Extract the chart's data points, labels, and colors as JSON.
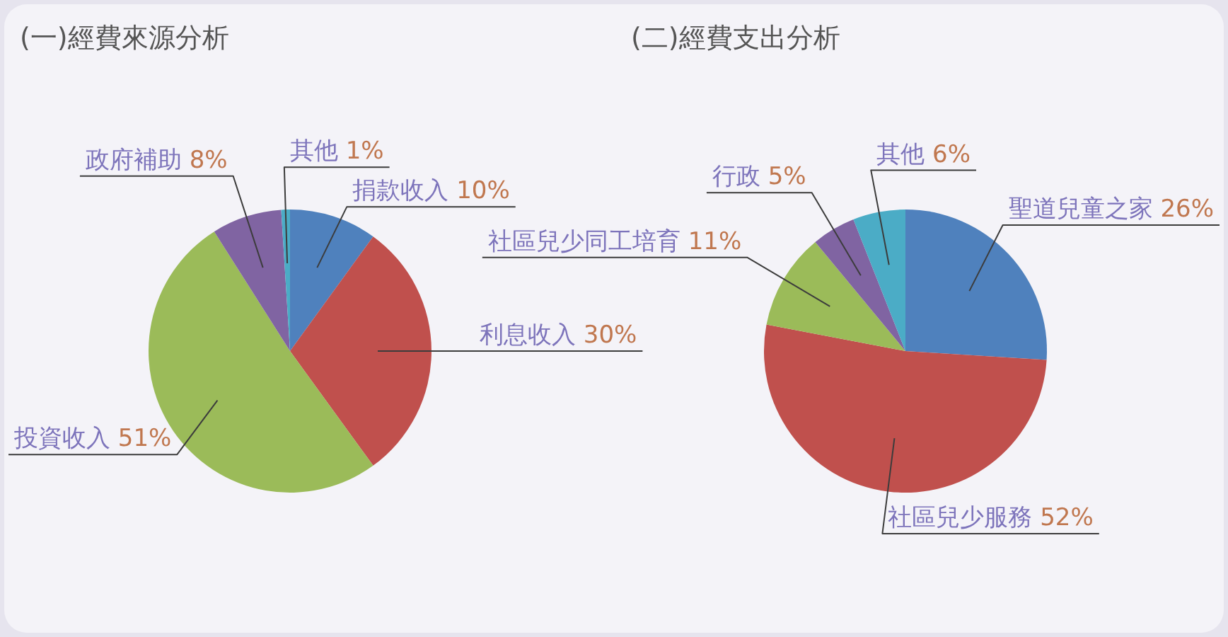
{
  "chart_data": [
    {
      "type": "pie",
      "title": "(一)經費來源分析",
      "categories": [
        "捐款收入",
        "利息收入",
        "投資收入",
        "政府補助",
        "其他"
      ],
      "values": [
        10,
        30,
        51,
        8,
        1
      ],
      "value_labels": [
        "10%",
        "30%",
        "51%",
        "8%",
        "1%"
      ],
      "colors": [
        "#4f81bd",
        "#c0504d",
        "#9bbb59",
        "#8064a2",
        "#4bacc6"
      ],
      "legend": false
    },
    {
      "type": "pie",
      "title": "(二)經費支出分析",
      "categories": [
        "聖道兒童之家",
        "社區兒少服務",
        "社區兒少同工培育",
        "行政",
        "其他"
      ],
      "values": [
        26,
        52,
        11,
        5,
        6
      ],
      "value_labels": [
        "26%",
        "52%",
        "11%",
        "5%",
        "6%"
      ],
      "colors": [
        "#4f81bd",
        "#c0504d",
        "#9bbb59",
        "#8064a2",
        "#4bacc6"
      ],
      "legend": false
    }
  ]
}
